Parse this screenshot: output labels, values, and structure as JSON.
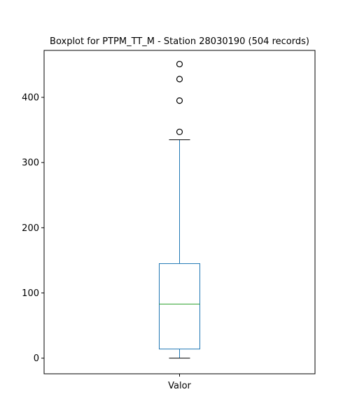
{
  "chart_data": {
    "type": "boxplot",
    "title": "Boxplot for PTPM_TT_M - Station 28030190 (504 records)",
    "categories": [
      "Valor"
    ],
    "xlabel": "",
    "ylabel": "",
    "ylim": [
      -24,
      472
    ],
    "yticks": [
      0,
      100,
      200,
      300,
      400
    ],
    "grid": false,
    "legend": "none",
    "boxes": [
      {
        "category": "Valor",
        "whisker_low": 0,
        "q1": 14,
        "median": 83,
        "q3": 145,
        "whisker_high": 335,
        "outliers": [
          347,
          395,
          428,
          451
        ]
      }
    ],
    "colors": {
      "box": "#1f77b4",
      "whisker": "#1f77b4",
      "median": "#2ca02c",
      "cap": "#000000",
      "outlier": "#000000",
      "axes": "#000000"
    }
  }
}
